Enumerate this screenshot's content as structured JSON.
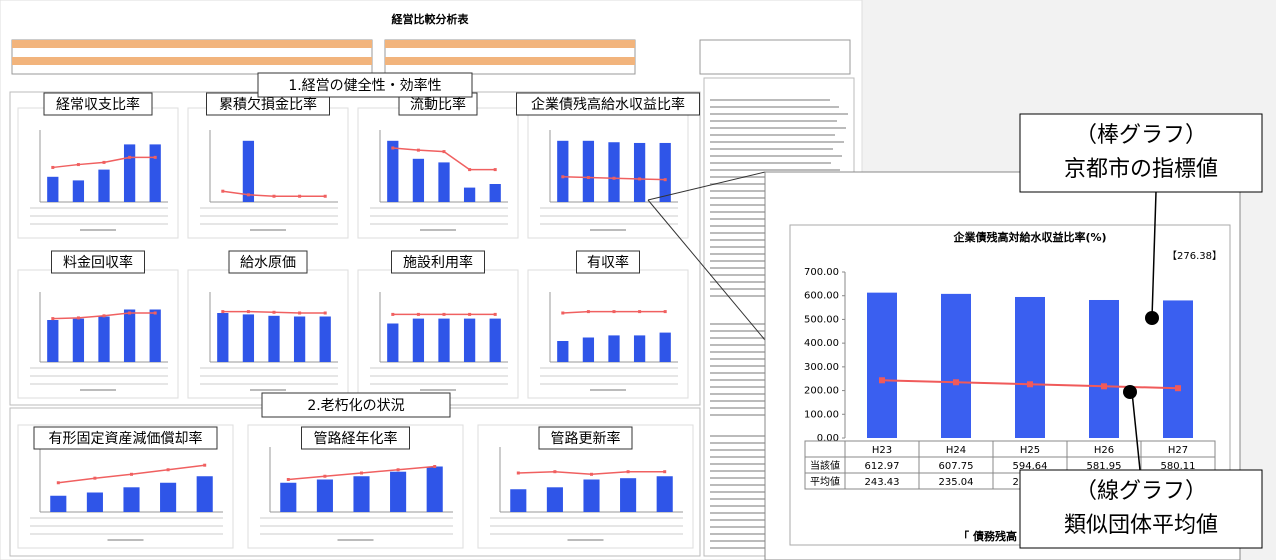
{
  "title": "経営比較分析表",
  "sections": [
    "1.経営の健全性・効率性",
    "2.老朽化の状況"
  ],
  "mini_ylim": [
    0,
    100
  ],
  "mini_charts": [
    {
      "title": "経常収支比率",
      "bars": [
        35,
        30,
        45,
        80,
        80
      ],
      "line": [
        48,
        52,
        55,
        62,
        62
      ]
    },
    {
      "title": "累積欠損金比率",
      "bars": [
        0,
        85,
        0,
        0,
        0
      ],
      "line": [
        15,
        10,
        8,
        8,
        8
      ]
    },
    {
      "title": "流動比率",
      "bars": [
        85,
        60,
        55,
        20,
        25
      ],
      "line": [
        75,
        72,
        70,
        45,
        45
      ]
    },
    {
      "title": "企業債残高給水収益比率",
      "bars": [
        85,
        85,
        83,
        82,
        82
      ],
      "line": [
        35,
        34,
        33,
        32,
        31
      ]
    },
    {
      "title": "料金回収率",
      "bars": [
        60,
        62,
        65,
        75,
        75
      ],
      "line": [
        62,
        63,
        66,
        70,
        70
      ]
    },
    {
      "title": "給水原価",
      "bars": [
        70,
        68,
        66,
        65,
        65
      ],
      "line": [
        72,
        72,
        71,
        70,
        70
      ]
    },
    {
      "title": "施設利用率",
      "bars": [
        55,
        62,
        62,
        62,
        62
      ],
      "line": [
        68,
        68,
        68,
        68,
        68
      ]
    },
    {
      "title": "有収率",
      "bars": [
        30,
        35,
        38,
        38,
        42
      ],
      "line": [
        70,
        72,
        72,
        72,
        72
      ]
    },
    {
      "title": "有形固定資産減価償却率",
      "bars": [
        25,
        30,
        38,
        45,
        55
      ],
      "line": [
        45,
        52,
        58,
        65,
        72
      ]
    },
    {
      "title": "管路経年化率",
      "bars": [
        45,
        50,
        55,
        62,
        70
      ],
      "line": [
        50,
        55,
        60,
        65,
        70
      ]
    },
    {
      "title": "管路更新率",
      "bars": [
        35,
        38,
        50,
        52,
        55
      ],
      "line": [
        60,
        62,
        58,
        62,
        62
      ]
    }
  ],
  "chart_data": {
    "type": "bar",
    "title": "企業債残高対給水収益比率(%)",
    "annotation": "【276.38】",
    "categories": [
      "H23",
      "H24",
      "H25",
      "H26",
      "H27"
    ],
    "series": [
      {
        "name": "当該値",
        "color": "#3a5ff0",
        "type": "bar",
        "values": [
          612.97,
          607.75,
          594.64,
          581.95,
          580.11
        ]
      },
      {
        "name": "平均値",
        "color": "#f05a5a",
        "type": "line",
        "values": [
          243.43,
          235.04,
          226.55,
          218,
          210
        ],
        "value_labels": [
          "243.43",
          "235.04",
          "226.55",
          null,
          null
        ]
      }
    ],
    "ylim": [
      0,
      700
    ],
    "yticks": [
      {
        "value": 0,
        "label": "0.00"
      },
      {
        "value": 100,
        "label": "100.00"
      },
      {
        "value": 200,
        "label": "200.00"
      },
      {
        "value": 300,
        "label": "300.00"
      },
      {
        "value": 400,
        "label": "400.00"
      },
      {
        "value": 500,
        "label": "500.00"
      },
      {
        "value": 600,
        "label": "600.00"
      },
      {
        "value": 700,
        "label": "700.00"
      }
    ],
    "grid": false,
    "footer": "「 債務残高 」"
  },
  "callouts": [
    {
      "lines": [
        "（棒グラフ）",
        "京都市の指標値"
      ]
    },
    {
      "lines": [
        "（線グラフ）",
        "類似団体平均値"
      ]
    }
  ]
}
